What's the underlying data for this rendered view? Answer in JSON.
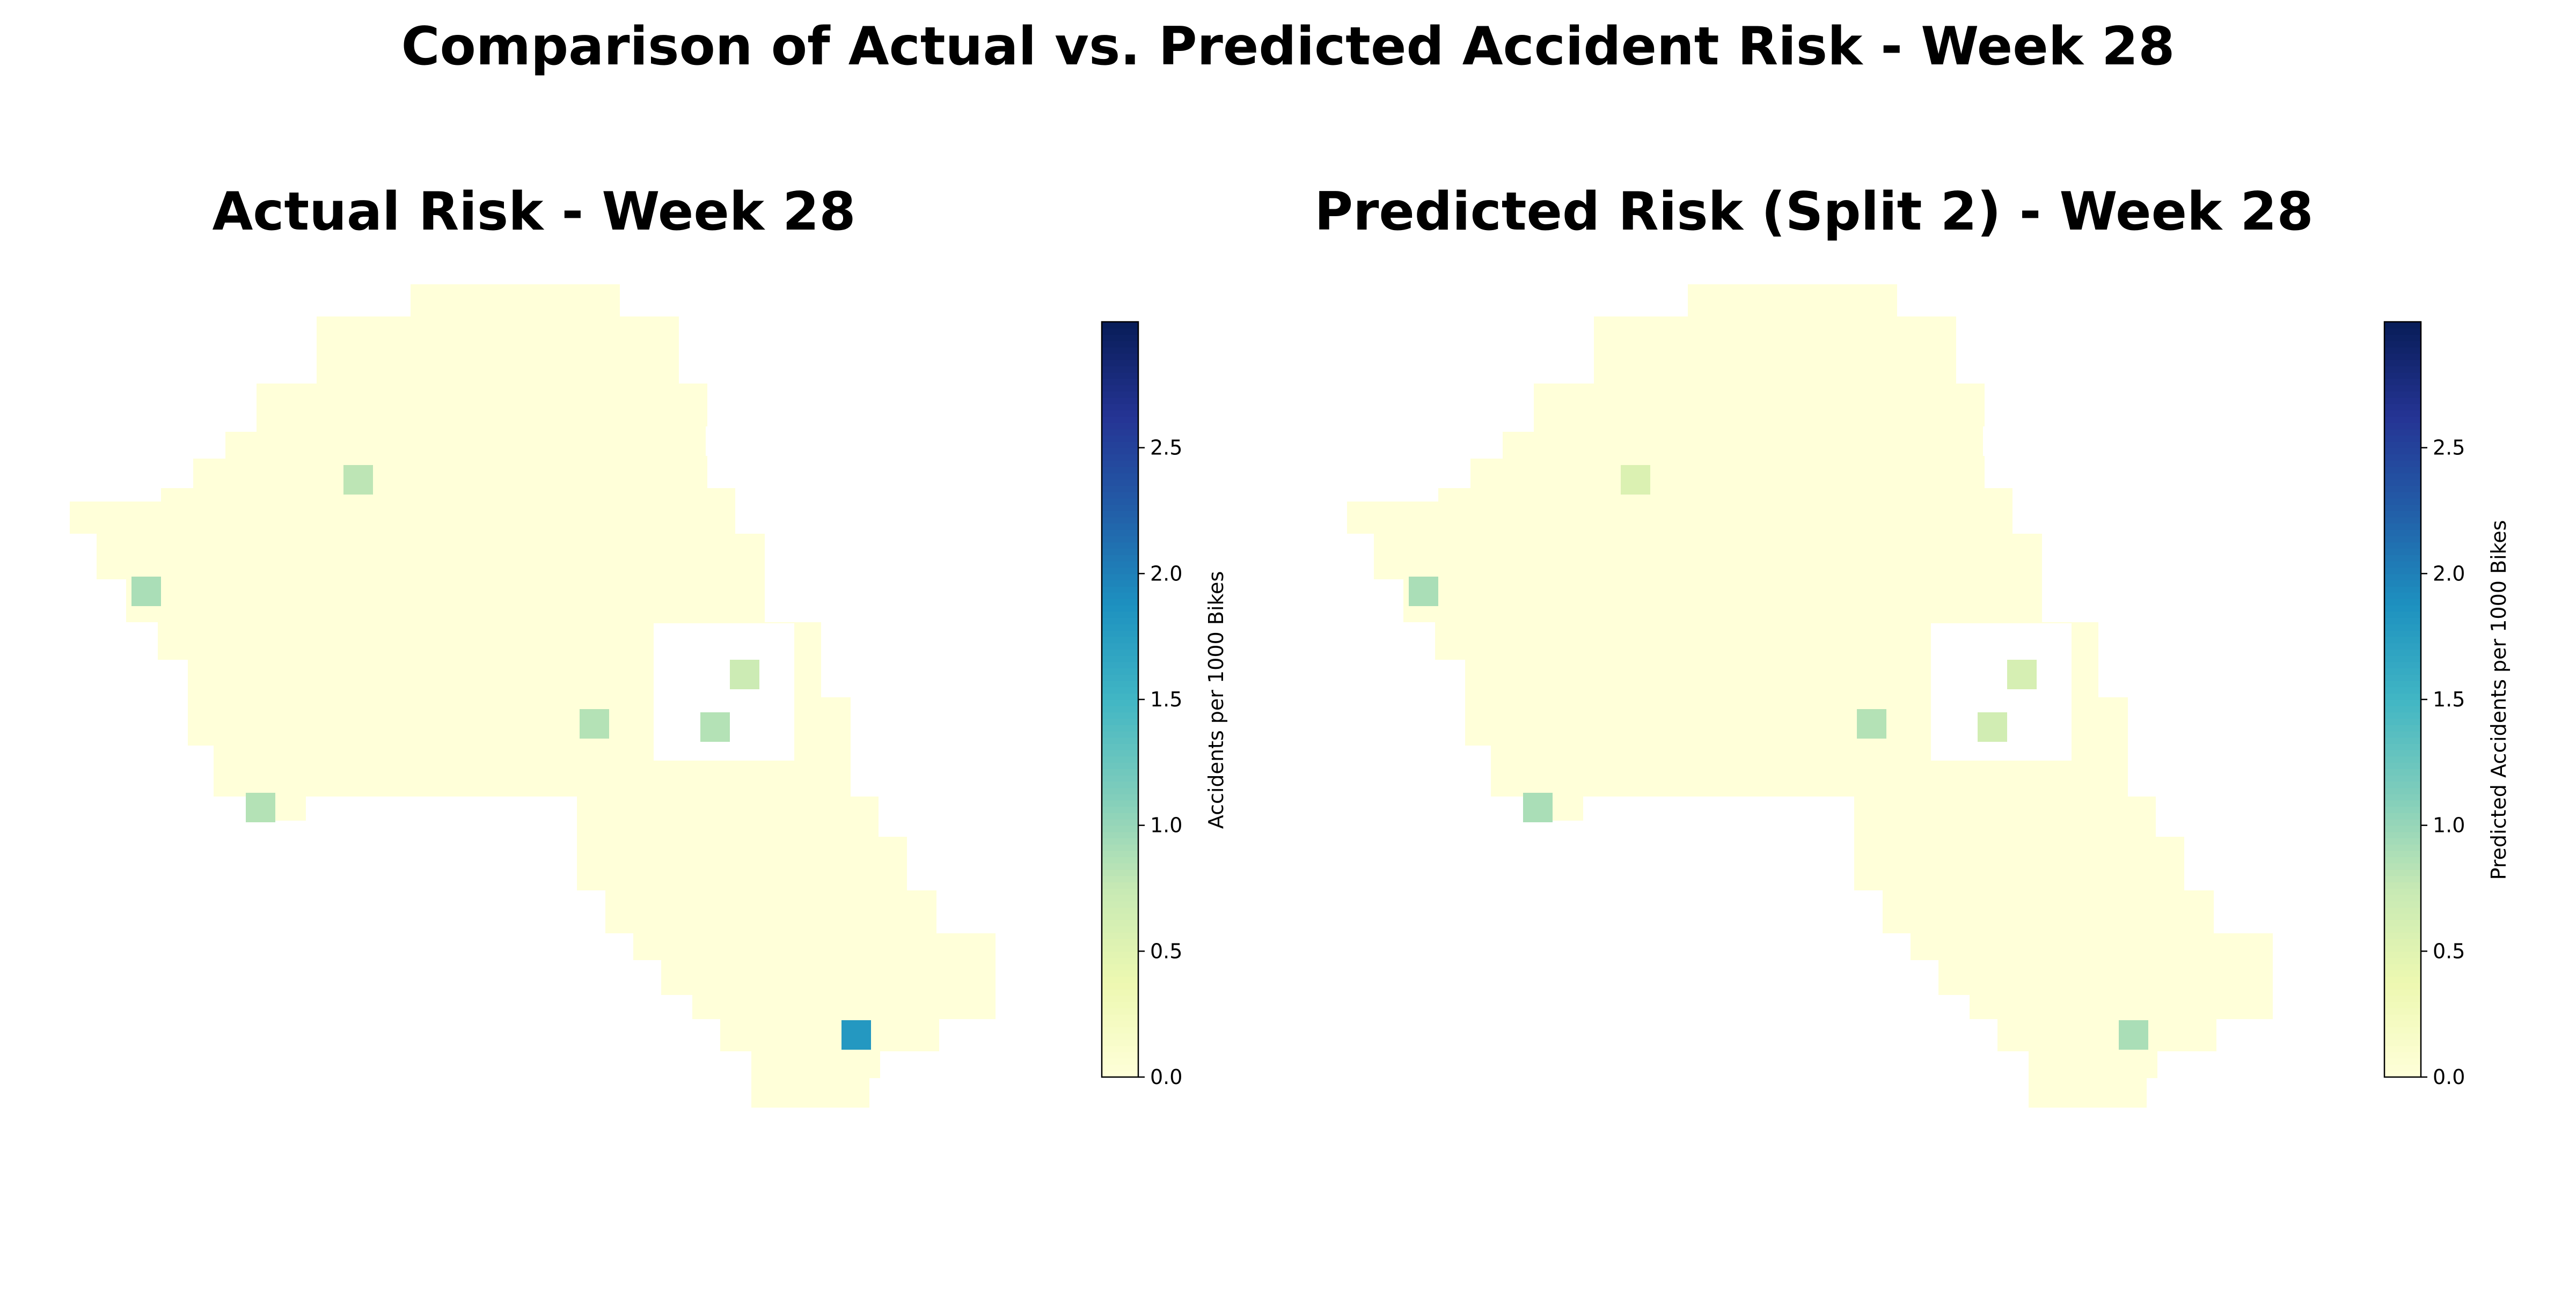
{
  "figure": {
    "title": "Comparison of Actual vs. Predicted Accident Risk - Week 28"
  },
  "colormap": {
    "name": "YlGnBu",
    "stops": [
      "#ffffd9",
      "#edf8b1",
      "#c7e9b4",
      "#7fcdbb",
      "#41b6c4",
      "#1d91c0",
      "#225ea8",
      "#253494",
      "#081d58"
    ]
  },
  "colorbar": {
    "vmin": 0.0,
    "vmax": 3.0,
    "ticks": [
      0.0,
      0.5,
      1.0,
      1.5,
      2.0,
      2.5
    ],
    "tick_labels": [
      "0.0",
      "0.5",
      "1.0",
      "1.5",
      "2.0",
      "2.5"
    ]
  },
  "chart_data": [
    {
      "type": "heatmap",
      "title": "Actual Risk - Week 28",
      "colorbar_label": "Accidents per 1000 Bikes",
      "ylim": [
        0,
        3.0
      ],
      "background_value": 0,
      "highlighted_cells": [
        {
          "col": 2,
          "row": 7,
          "value": 0.8
        },
        {
          "col": -1,
          "row": 11,
          "value": 0.9
        },
        {
          "col": 21,
          "row": 13,
          "value": 0.7
        },
        {
          "col": 16,
          "row": 15,
          "value": 0.85
        },
        {
          "col": 20,
          "row": 15,
          "value": 0.85
        },
        {
          "col": 1,
          "row": 18,
          "value": 0.85
        },
        {
          "col": 24,
          "row": 26,
          "value": 1.8
        }
      ]
    },
    {
      "type": "heatmap",
      "title": "Predicted Risk (Split 2) - Week 28",
      "colorbar_label": "Predicted Accidents per 1000 Bikes",
      "ylim": [
        0,
        3.0
      ],
      "background_value": 0,
      "highlighted_cells": [
        {
          "col": 2,
          "row": 7,
          "value": 0.55
        },
        {
          "col": -1,
          "row": 11,
          "value": 0.9
        },
        {
          "col": 21,
          "row": 13,
          "value": 0.6
        },
        {
          "col": 16,
          "row": 15,
          "value": 0.85
        },
        {
          "col": 20,
          "row": 15,
          "value": 0.65
        },
        {
          "col": 1,
          "row": 18,
          "value": 0.9
        },
        {
          "col": 24,
          "row": 26,
          "value": 0.9
        }
      ]
    }
  ]
}
